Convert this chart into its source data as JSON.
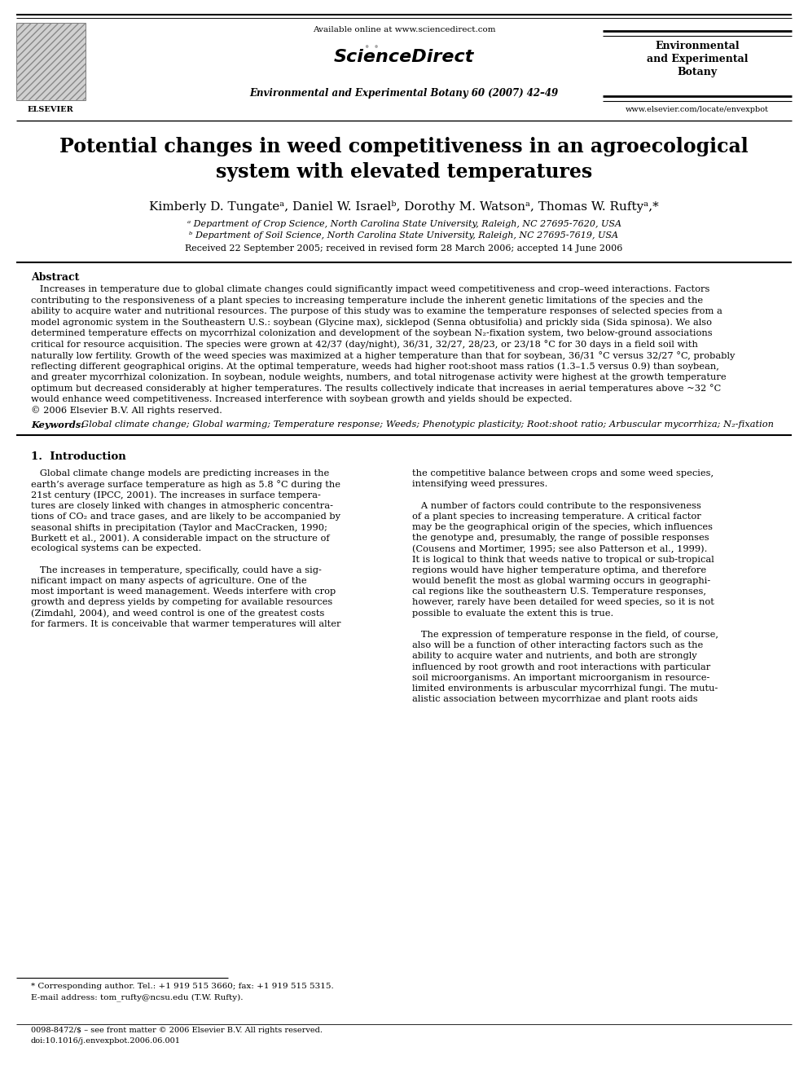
{
  "bg_color": "#ffffff",
  "page_width": 9.92,
  "page_height": 13.23,
  "header": {
    "available_online": "Available online at www.sciencedirect.com",
    "journal_info": "Environmental and Experimental Botany 60 (2007) 42–49",
    "journal_name_line1": "Environmental",
    "journal_name_line2": "and Experimental",
    "journal_name_line3": "Botany",
    "website": "www.elsevier.com/locate/envexpbot",
    "issn": "0098-8472/$ – see front matter © 2006 Elsevier B.V. All rights reserved.",
    "doi": "doi:10.1016/j.envexpbot.2006.06.001"
  },
  "title": "Potential changes in weed competitiveness in an agroecological\nsystem with elevated temperatures",
  "authors": "Kimberly D. Tungateᵃ, Daniel W. Israelᵇ, Dorothy M. Watsonᵃ, Thomas W. Ruftyᵃ,*",
  "affil_a": "ᵃ Department of Crop Science, North Carolina State University, Raleigh, NC 27695-7620, USA",
  "affil_b": "ᵇ Department of Soil Science, North Carolina State University, Raleigh, NC 27695-7619, USA",
  "received": "Received 22 September 2005; received in revised form 28 March 2006; accepted 14 June 2006",
  "abstract_label": "Abstract",
  "keywords_label": "Keywords:",
  "keywords_text": "Global climate change; Global warming; Temperature response; Weeds; Phenotypic plasticity; Root:shoot ratio; Arbuscular mycorrhiza; N₂-fixation",
  "section1_label": "1.  Introduction",
  "footnote_star": "* Corresponding author. Tel.: +1 919 515 3660; fax: +1 919 515 5315.",
  "footnote_email": "E-mail address: tom_rufty@ncsu.edu (T.W. Rufty).",
  "col1_lines": [
    "   Global climate change models are predicting increases in the",
    "earth’s average surface temperature as high as 5.8 °C during the",
    "21st century (IPCC, 2001). The increases in surface tempera-",
    "tures are closely linked with changes in atmospheric concentra-",
    "tions of CO₂ and trace gases, and are likely to be accompanied by",
    "seasonal shifts in precipitation (Taylor and MacCracken, 1990;",
    "Burkett et al., 2001). A considerable impact on the structure of",
    "ecological systems can be expected.",
    "",
    "   The increases in temperature, specifically, could have a sig-",
    "nificant impact on many aspects of agriculture. One of the",
    "most important is weed management. Weeds interfere with crop",
    "growth and depress yields by competing for available resources",
    "(Zimdahl, 2004), and weed control is one of the greatest costs",
    "for farmers. It is conceivable that warmer temperatures will alter"
  ],
  "col2_lines": [
    "the competitive balance between crops and some weed species,",
    "intensifying weed pressures.",
    "",
    "   A number of factors could contribute to the responsiveness",
    "of a plant species to increasing temperature. A critical factor",
    "may be the geographical origin of the species, which influences",
    "the genotype and, presumably, the range of possible responses",
    "(Cousens and Mortimer, 1995; see also Patterson et al., 1999).",
    "It is logical to think that weeds native to tropical or sub-tropical",
    "regions would have higher temperature optima, and therefore",
    "would benefit the most as global warming occurs in geographi-",
    "cal regions like the southeastern U.S. Temperature responses,",
    "however, rarely have been detailed for weed species, so it is not",
    "possible to evaluate the extent this is true.",
    "",
    "   The expression of temperature response in the field, of course,",
    "also will be a function of other interacting factors such as the",
    "ability to acquire water and nutrients, and both are strongly",
    "influenced by root growth and root interactions with particular",
    "soil microorganisms. An important microorganism in resource-",
    "limited environments is arbuscular mycorrhizal fungi. The mutu-",
    "alistic association between mycorrhizae and plant roots aids"
  ],
  "abstract_lines": [
    "   Increases in temperature due to global climate changes could significantly impact weed competitiveness and crop–weed interactions. Factors",
    "contributing to the responsiveness of a plant species to increasing temperature include the inherent genetic limitations of the species and the",
    "ability to acquire water and nutritional resources. The purpose of this study was to examine the temperature responses of selected species from a",
    "model agronomic system in the Southeastern U.S.: soybean (Glycine max), sicklepod (Senna obtusifolia) and prickly sida (Sida spinosa). We also",
    "determined temperature effects on mycorrhizal colonization and development of the soybean N₂-fixation system, two below-ground associations",
    "critical for resource acquisition. The species were grown at 42/37 (day/night), 36/31, 32/27, 28/23, or 23/18 °C for 30 days in a field soil with",
    "naturally low fertility. Growth of the weed species was maximized at a higher temperature than that for soybean, 36/31 °C versus 32/27 °C, probably",
    "reflecting different geographical origins. At the optimal temperature, weeds had higher root:shoot mass ratios (1.3–1.5 versus 0.9) than soybean,",
    "and greater mycorrhizal colonization. In soybean, nodule weights, numbers, and total nitrogenase activity were highest at the growth temperature",
    "optimum but decreased considerably at higher temperatures. The results collectively indicate that increases in aerial temperatures above ~32 °C",
    "would enhance weed competitiveness. Increased interference with soybean growth and yields should be expected.",
    "© 2006 Elsevier B.V. All rights reserved."
  ]
}
